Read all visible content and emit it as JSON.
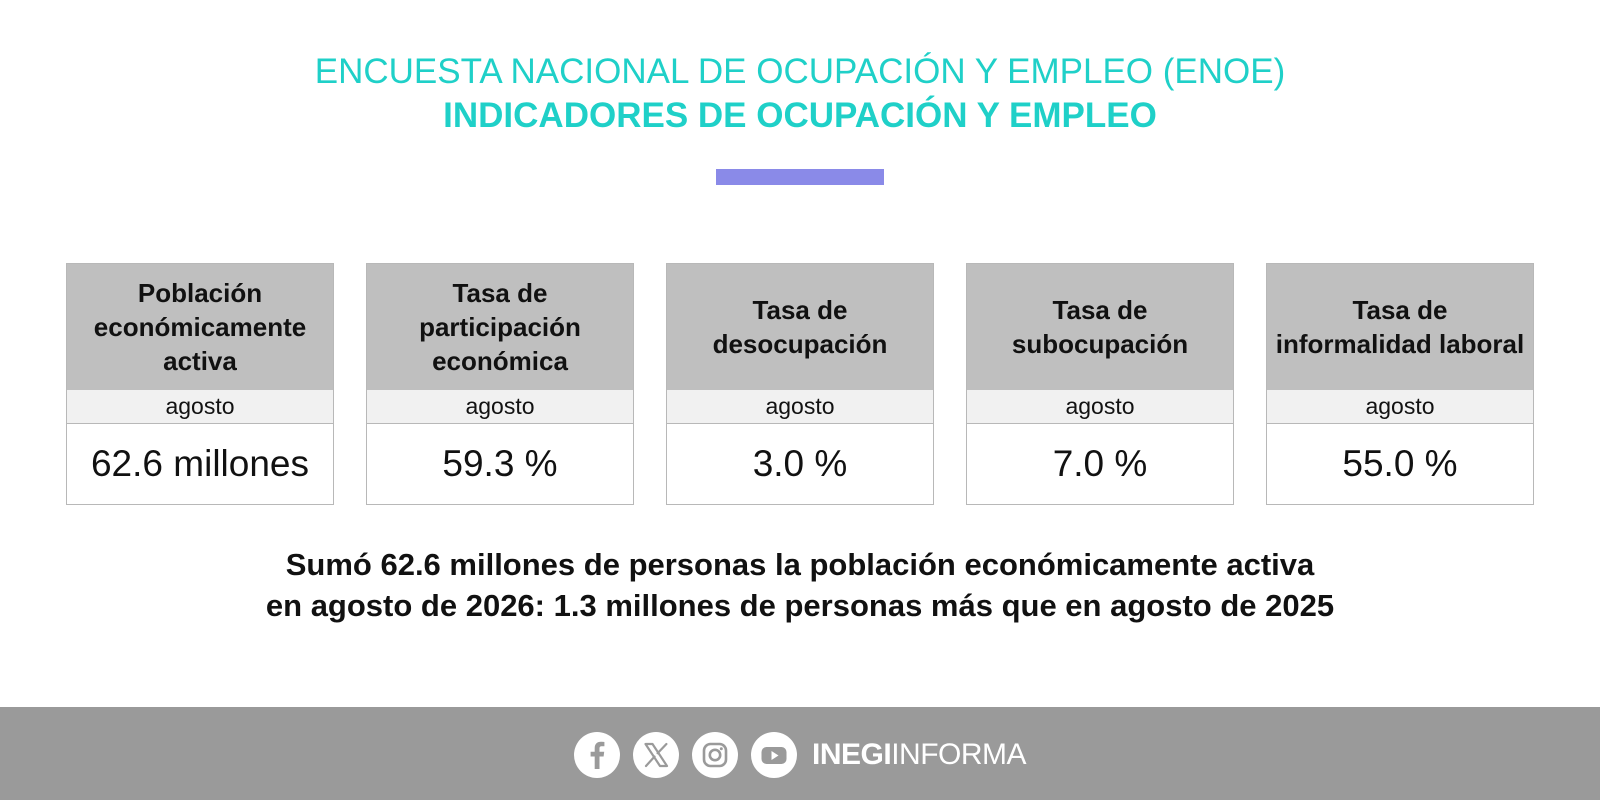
{
  "header": {
    "title_line1": "ENCUESTA NACIONAL DE OCUPACIÓN Y EMPLEO (ENOE)",
    "title_line2": "INDICADORES DE OCUPACIÓN Y EMPLEO"
  },
  "colors": {
    "title": "#1fd0c8",
    "accent_bar": "#8a8ae8",
    "card_header": "#bfbfbf",
    "card_subheader": "#f1f1f1",
    "footer": "#9a9a9a"
  },
  "indicators": [
    {
      "title": "Población económicamente activa",
      "period": "agosto",
      "value": "62.6 millones"
    },
    {
      "title": "Tasa de participación económica",
      "period": "agosto",
      "value": "59.3 %"
    },
    {
      "title": "Tasa de desocupación",
      "period": "agosto",
      "value": "3.0 %"
    },
    {
      "title": "Tasa de subocupación",
      "period": "agosto",
      "value": "7.0 %"
    },
    {
      "title": "Tasa de informalidad laboral",
      "period": "agosto",
      "value": "55.0 %"
    }
  ],
  "summary": {
    "line1": "Sumó 62.6 millones de personas la población económicamente activa",
    "line2": "en agosto de 2026: 1.3 millones de personas más que en agosto de 2025"
  },
  "footer": {
    "social_icons": [
      "facebook-icon",
      "x-icon",
      "instagram-icon",
      "youtube-icon"
    ],
    "brand_bold": "INEGI",
    "brand_light": "INFORMA"
  }
}
